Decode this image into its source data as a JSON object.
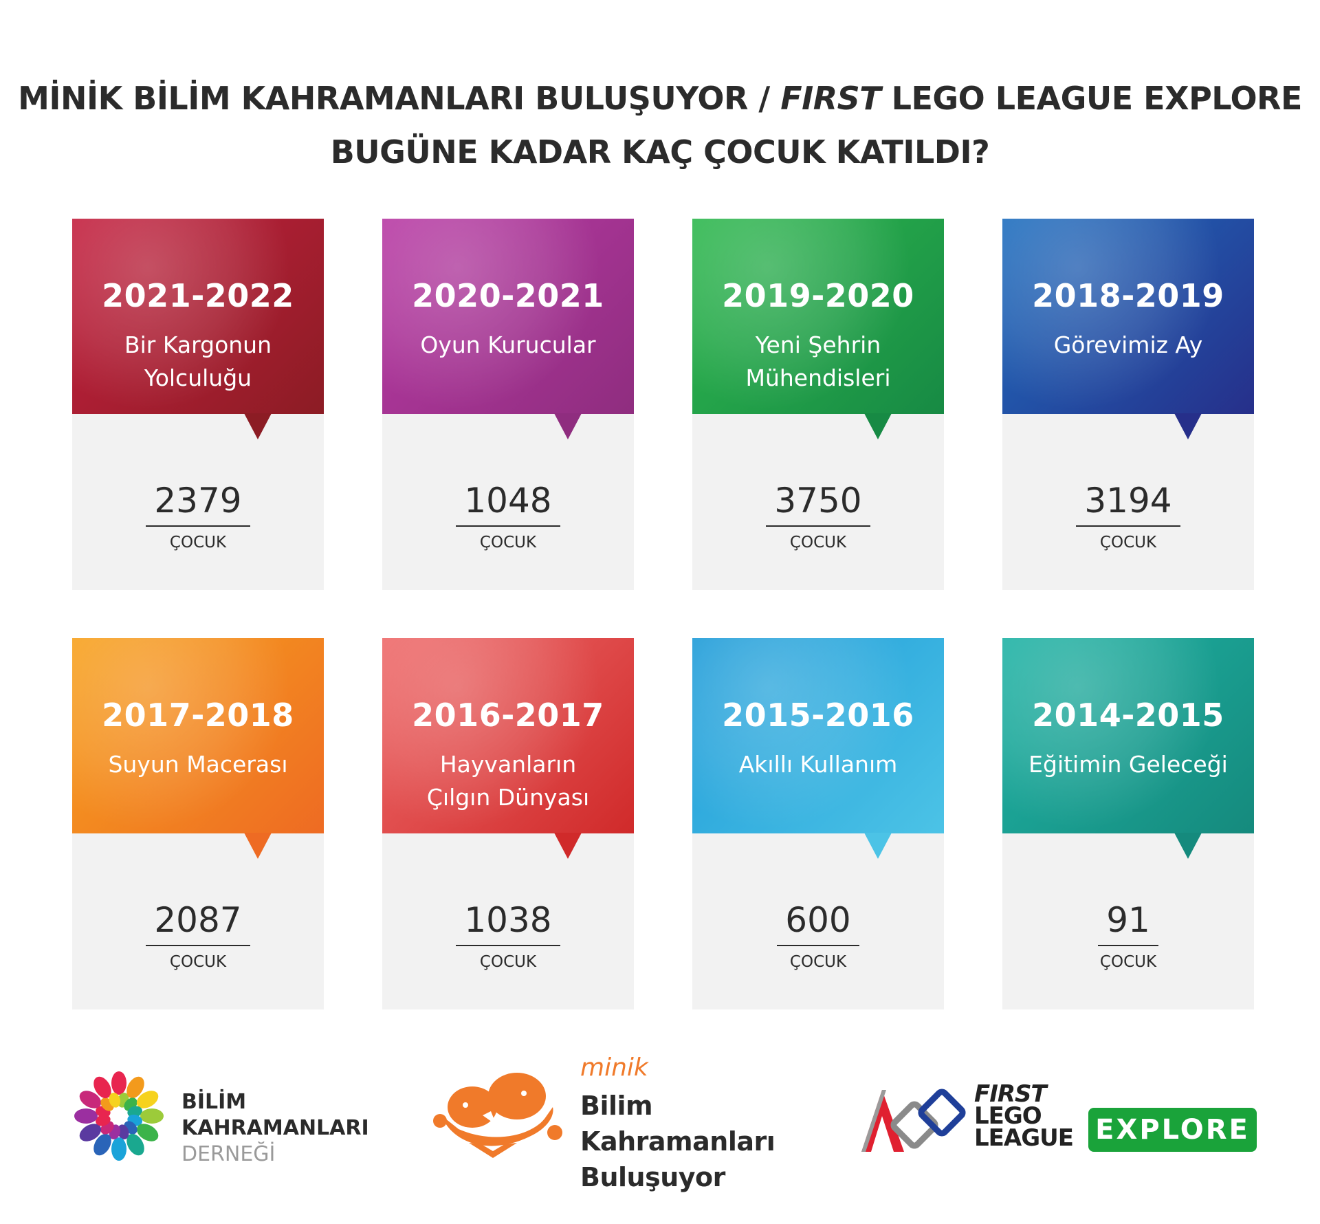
{
  "header": {
    "title_line1_a": "MİNİK BİLİM KAHRAMANLARI BULUŞUYOR / ",
    "title_line1_italic": "FIRST",
    "title_line1_b": " LEGO LEAGUE EXPLORE",
    "title_line2": "BUGÜNE KADAR KAÇ ÇOCUK KATILDI?"
  },
  "seasons": [
    {
      "year": "2021-2022",
      "theme_lines": [
        "Bir Kargonun",
        "Yolculuğu"
      ],
      "count": "2379",
      "unit": "ÇOCUK",
      "color_a": "#c4203f",
      "color_b": "#8c1c24"
    },
    {
      "year": "2020-2021",
      "theme_lines": [
        "Oyun Kurucular"
      ],
      "count": "1048",
      "unit": "ÇOCUK",
      "color_a": "#b83aa4",
      "color_b": "#8f2d7f"
    },
    {
      "year": "2019-2020",
      "theme_lines": [
        "Yeni Şehrin",
        "Mühendisleri"
      ],
      "count": "3750",
      "unit": "ÇOCUK",
      "color_a": "#2eb84e",
      "color_b": "#178a44"
    },
    {
      "year": "2018-2019",
      "theme_lines": [
        "Görevimiz Ay"
      ],
      "count": "3194",
      "unit": "ÇOCUK",
      "color_a": "#1f6fbf",
      "color_b": "#262f8a"
    },
    {
      "year": "2017-2018",
      "theme_lines": [
        "Suyun Macerası"
      ],
      "count": "2087",
      "unit": "ÇOCUK",
      "color_a": "#f7a21e",
      "color_b": "#ee6b23"
    },
    {
      "year": "2016-2017",
      "theme_lines": [
        "Hayvanların",
        "Çılgın Dünyası"
      ],
      "count": "1038",
      "unit": "ÇOCUK",
      "color_a": "#ee6a6a",
      "color_b": "#d02a2a"
    },
    {
      "year": "2015-2016",
      "theme_lines": [
        "Akıllı Kullanım"
      ],
      "count": "600",
      "unit": "ÇOCUK",
      "color_a": "#1e9bd8",
      "color_b": "#4cc3e6"
    },
    {
      "year": "2014-2015",
      "theme_lines": [
        "Eğitimin Geleceği"
      ],
      "count": "91",
      "unit": "ÇOCUK",
      "color_a": "#1fb3a5",
      "color_b": "#158a7d"
    }
  ],
  "logos": {
    "bilim": {
      "line1": "BİLİM",
      "line2": "KAHRAMANLARI",
      "line3": "DERNEĞİ"
    },
    "minik": {
      "small": "minik",
      "line1": "Bilim Kahramanları",
      "line2": "Buluşuyor"
    },
    "fll": {
      "first": "FIRST",
      "lego": "LEGO",
      "league": "LEAGUE",
      "explore": "EXPLORE"
    }
  }
}
